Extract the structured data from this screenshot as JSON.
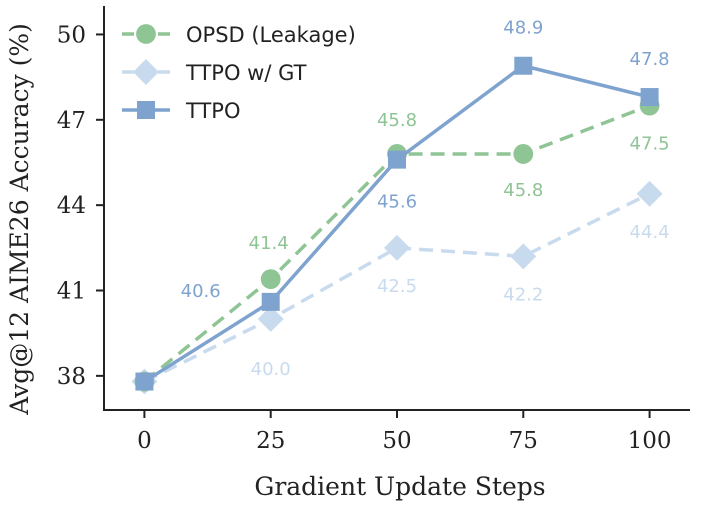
{
  "chart_data": {
    "type": "line",
    "x": [
      0,
      25,
      50,
      75,
      100
    ],
    "xticks": [
      "0",
      "25",
      "50",
      "75",
      "100"
    ],
    "yticks": [
      "38",
      "41",
      "44",
      "47",
      "50"
    ],
    "ytick_values": [
      38,
      41,
      44,
      47,
      50
    ],
    "xlim": [
      -8,
      108
    ],
    "ylim": [
      36.8,
      51.0
    ],
    "xlabel": "Gradient Update Steps",
    "ylabel": "Avg@12 AIME26 Accuracy (%)",
    "legend_position": "upper-left",
    "grid": false,
    "series": [
      {
        "name": "OPSD (Leakage)",
        "values": [
          37.8,
          41.4,
          45.8,
          45.8,
          47.5
        ],
        "labels": [
          "",
          "41.4",
          "45.8",
          "45.8",
          "47.5"
        ],
        "color": "#8fc495",
        "line_style": "dashed",
        "marker": "circle"
      },
      {
        "name": "TTPO w/ GT",
        "values": [
          37.8,
          40.0,
          42.5,
          42.2,
          44.4
        ],
        "labels": [
          "",
          "40.0",
          "42.5",
          "42.2",
          "44.4"
        ],
        "color": "#c8dbee",
        "line_style": "dashed",
        "marker": "diamond"
      },
      {
        "name": "TTPO",
        "values": [
          37.8,
          40.6,
          45.6,
          48.9,
          47.8
        ],
        "labels": [
          "",
          "40.6",
          "45.6",
          "48.9",
          "47.8"
        ],
        "color": "#7fa3cf",
        "line_style": "solid",
        "marker": "square"
      }
    ]
  }
}
